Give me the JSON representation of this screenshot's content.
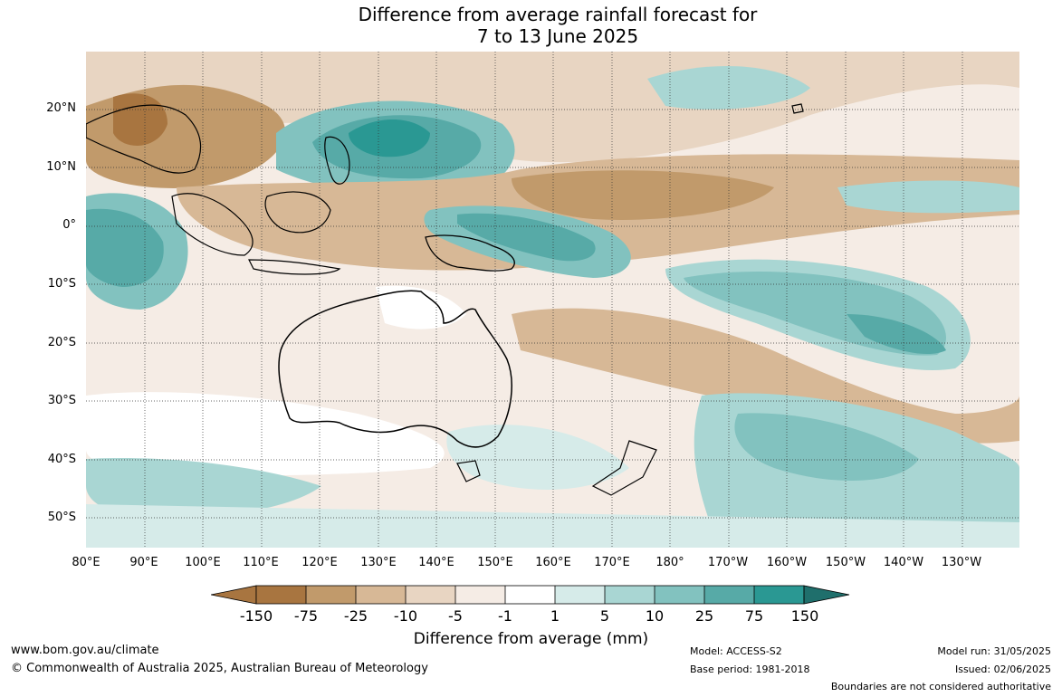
{
  "title": {
    "line1": "Difference from average rainfall forecast for",
    "line2": "7 to 13 June 2025"
  },
  "map": {
    "lat_labels": [
      "20°N",
      "10°N",
      "0°",
      "10°S",
      "20°S",
      "30°S",
      "40°S",
      "50°S"
    ],
    "lon_labels": [
      "80°E",
      "90°E",
      "100°E",
      "110°E",
      "120°E",
      "130°E",
      "140°E",
      "150°E",
      "160°E",
      "170°E",
      "180°",
      "170°W",
      "160°W",
      "150°W",
      "140°W",
      "130°W"
    ],
    "gridlines": true,
    "colors": {
      "dry_strong": "#a87540",
      "dry_mid": "#c19a6b",
      "dry_light": "#d7b896",
      "dry_faint": "#e8d5c2",
      "dry_veryfaint": "#f5ece5",
      "neutral": "#ffffff",
      "wet_veryfaint": "#d6ebe9",
      "wet_faint": "#a9d6d3",
      "wet_light": "#82c2bf",
      "wet_mid": "#57aaa7",
      "wet_strong": "#2a9893",
      "wet_max": "#1f6f6c"
    }
  },
  "colorbar": {
    "labels": [
      "-150",
      "-75",
      "-25",
      "-10",
      "-5",
      "-1",
      "1",
      "5",
      "10",
      "25",
      "75",
      "150"
    ],
    "colors": [
      "#a87540",
      "#c19a6b",
      "#d7b896",
      "#e8d5c2",
      "#f5ece5",
      "#ffffff",
      "#d6ebe9",
      "#a9d6d3",
      "#82c2bf",
      "#57aaa7",
      "#2a9893",
      "#1f6f6c"
    ],
    "title": "Difference from average (mm)"
  },
  "footer": {
    "url": "www.bom.gov.au/climate",
    "copyright": "© Commonwealth of Australia 2025, Australian Bureau of Meteorology",
    "model": "Model: ACCESS-S2",
    "base_period": "Base period: 1981-2018",
    "model_run": "Model run: 31/05/2025",
    "issued": "Issued: 02/06/2025",
    "disclaimer": "Boundaries are not considered authoritative"
  }
}
